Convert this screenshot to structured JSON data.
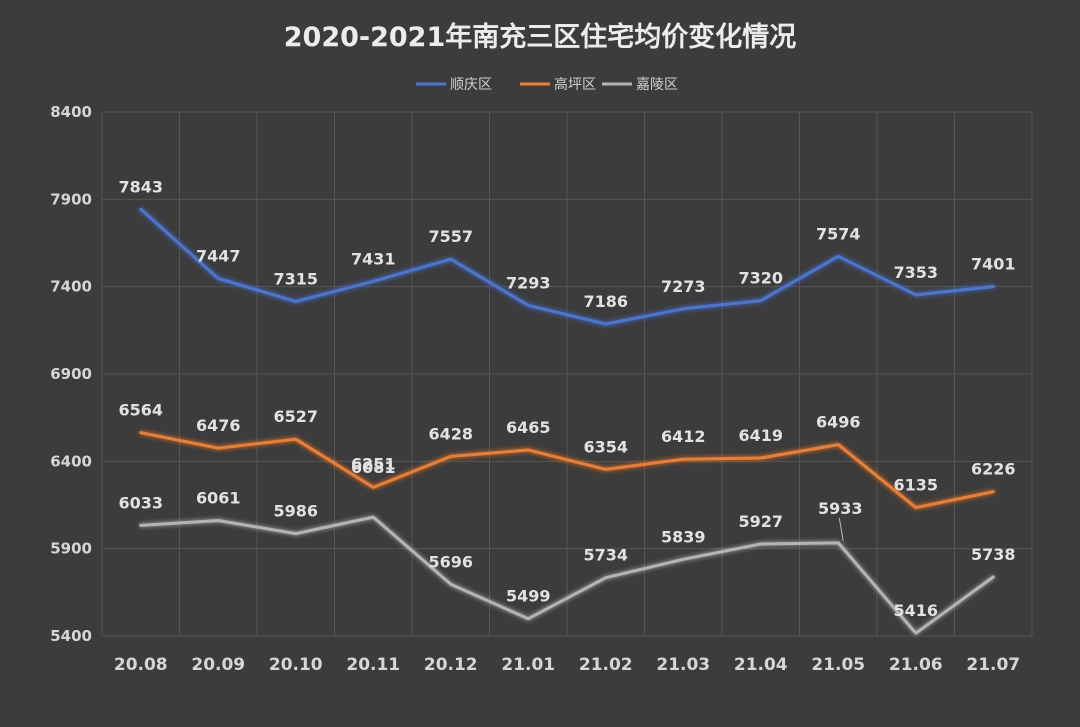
{
  "chart_data": {
    "type": "line",
    "title": "2020-2021年南充三区住宅均价变化情况",
    "categories": [
      "20.08",
      "20.09",
      "20.10",
      "20.11",
      "20.12",
      "21.01",
      "21.02",
      "21.03",
      "21.04",
      "21.05",
      "21.06",
      "21.07"
    ],
    "series": [
      {
        "name": "顺庆区",
        "color": "#4a74d4",
        "values": [
          7843,
          7447,
          7315,
          7431,
          7557,
          7293,
          7186,
          7273,
          7320,
          7574,
          7353,
          7401
        ]
      },
      {
        "name": "高坪区",
        "color": "#ee7d2f",
        "values": [
          6564,
          6476,
          6527,
          6251,
          6428,
          6465,
          6354,
          6412,
          6419,
          6496,
          6135,
          6226
        ]
      },
      {
        "name": "嘉陵区",
        "color": "#b4b4b4",
        "values": [
          6033,
          6061,
          5986,
          6081,
          5696,
          5499,
          5734,
          5839,
          5927,
          5933,
          5416,
          5738
        ]
      }
    ],
    "ylim": [
      5400,
      8400
    ],
    "yticks": [
      5400,
      5900,
      6400,
      6900,
      7400,
      7900,
      8400
    ],
    "grid": true,
    "legend": "top",
    "background": "#3c3c3c"
  }
}
